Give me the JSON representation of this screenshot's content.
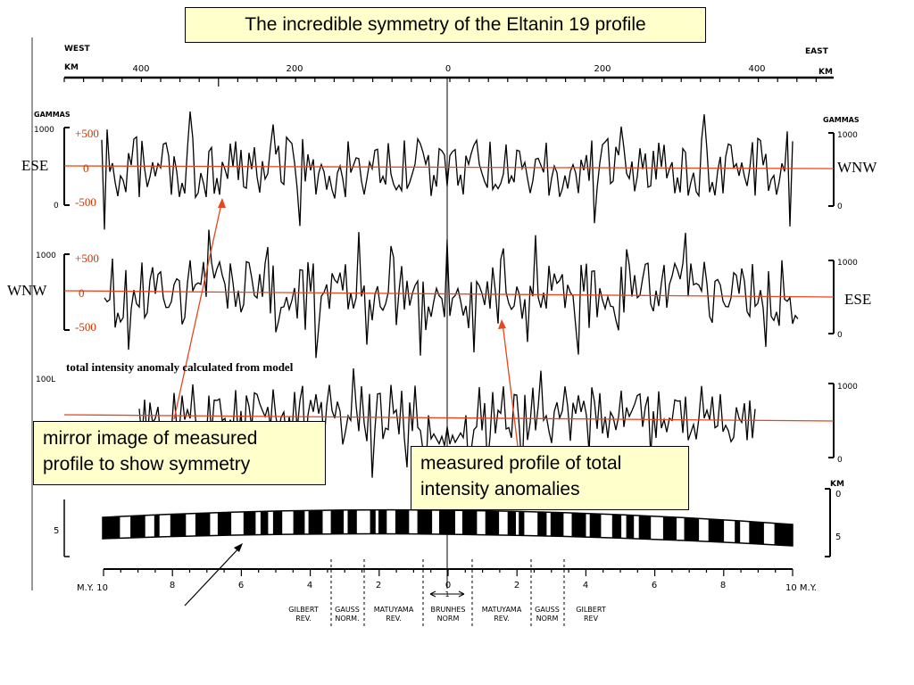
{
  "title": "The incredible symmetry of the Eltanin 19 profile",
  "labels": {
    "profile1_left": "ESE",
    "profile1_right": "WNW",
    "profile2_left": "WNW",
    "profile2_right": "ESE",
    "plus500": "+500",
    "zero": "0",
    "minus500": "-500",
    "model_note": "total intensity anomaly calculated from model"
  },
  "callouts": {
    "mirror_line1": "mirror image of measured",
    "mirror_line2": "profile to show symmetry",
    "measured_line1": "measured  profile of total",
    "measured_line2": "intensity anomalies"
  },
  "figure": {
    "west": "WEST",
    "east": "EAST",
    "km": "KM",
    "km_ticks": [
      "400",
      "200",
      "0",
      "200",
      "400"
    ],
    "gammas": "GAMMAS",
    "gamma_1000": "1000",
    "gamma_0": "0",
    "gamma_100l": "100L",
    "depth_km": "KM",
    "depth_0": "0",
    "depth_5": "5",
    "my_left": "M.Y. 10",
    "my_right": "10 M.Y.",
    "my_ticks": [
      "8",
      "6",
      "4",
      "2",
      "0",
      "2",
      "4",
      "6",
      "8"
    ],
    "epochs": [
      [
        "GILBERT",
        "REV."
      ],
      [
        "GAUSS",
        "NORM."
      ],
      [
        "MATUYAMA",
        "REV."
      ],
      [
        "BRUNHES",
        "NORM"
      ],
      [
        "MATUYAMA",
        "REV."
      ],
      [
        "GAUSS",
        "NORM"
      ],
      [
        "GILBERT",
        "REV"
      ]
    ],
    "brunhes_arrow": "1"
  },
  "colors": {
    "callout_bg": "#ffffcc",
    "red_line": "#e8461c",
    "red_text": "#cc3300"
  }
}
